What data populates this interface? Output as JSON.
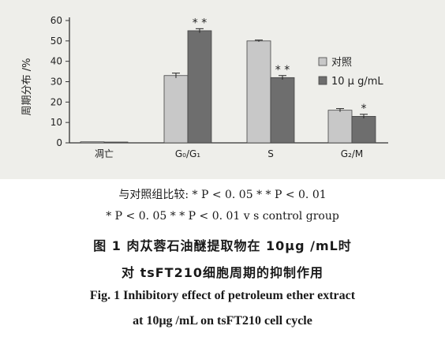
{
  "chart_data": {
    "type": "bar",
    "categories": [
      "凋亡",
      "G₀/G₁",
      "S",
      "G₂/M"
    ],
    "series": [
      {
        "name": "对照",
        "values": [
          0.5,
          33,
          50,
          16
        ],
        "error": [
          0.3,
          1.2,
          0.4,
          0.8
        ],
        "color": "#c8c8c8"
      },
      {
        "name": "10 μ g/mL",
        "values": [
          0.4,
          55,
          32,
          13
        ],
        "error": [
          0.3,
          1.0,
          1.0,
          1.0
        ],
        "color": "#6e6e6e"
      }
    ],
    "significance": [
      "",
      "* *",
      "* *",
      "*"
    ],
    "ylabel": "周期分布 /%",
    "yticks": [
      0,
      10,
      20,
      30,
      40,
      50,
      60
    ],
    "ylim": [
      0,
      60
    ],
    "legend_position": "right",
    "grid": false
  },
  "captions": {
    "note_cn": "与对照组比较: * P < 0. 05  * * P < 0. 01",
    "note_en": "* P < 0. 05  * * P < 0. 01 v s control group",
    "title_cn_1": "图 1  肉苁蓉石油醚提取物在 10μg /mL时",
    "title_cn_2": "对 tsFT210细胞周期的抑制作用",
    "title_en_1": "Fig. 1  Inhibitory effect of petroleum ether extract",
    "title_en_2": "at 10μg /mL on tsFT210 cell cycle"
  }
}
